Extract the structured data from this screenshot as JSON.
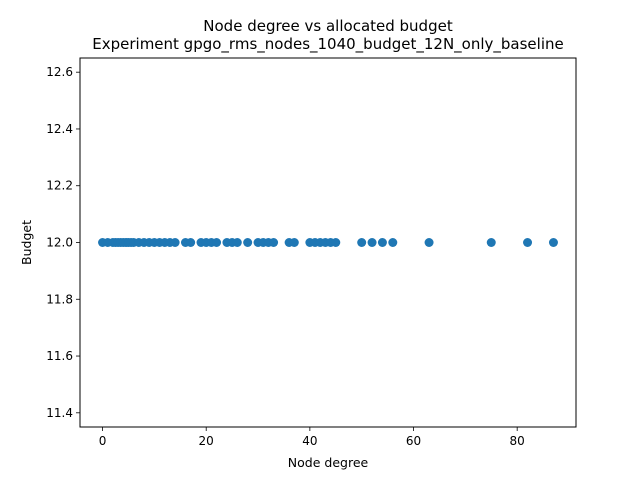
{
  "chart_data": {
    "type": "scatter",
    "title": "Node degree vs allocated budget",
    "subtitle": "Experiment gpgo_rms_nodes_1040_budget_12N_only_baseline",
    "xlabel": "Node degree",
    "ylabel": "Budget",
    "xlim": [
      -4.35,
      91.35
    ],
    "ylim": [
      11.35,
      12.65
    ],
    "xticks": [
      0,
      20,
      40,
      60,
      80
    ],
    "xtick_labels": [
      "0",
      "20",
      "40",
      "60",
      "80"
    ],
    "yticks": [
      11.4,
      11.6,
      11.8,
      12.0,
      12.2,
      12.4,
      12.6
    ],
    "ytick_labels": [
      "11.4",
      "11.6",
      "11.8",
      "12.0",
      "12.2",
      "12.4",
      "12.6"
    ],
    "grid": false,
    "marker_color": "#1f77b4",
    "series": [
      {
        "x": [
          0,
          1,
          2,
          2.5,
          3,
          3.5,
          4,
          4.5,
          5,
          5.5,
          6,
          7,
          8,
          9,
          10,
          11,
          12,
          13,
          14,
          16,
          17,
          19,
          20,
          21,
          22,
          24,
          25,
          26,
          28,
          30,
          31,
          32,
          33,
          36,
          37,
          40,
          41,
          42,
          43,
          44,
          45,
          50,
          52,
          54,
          56,
          63,
          75,
          82,
          87
        ],
        "y": [
          12,
          12,
          12,
          12,
          12,
          12,
          12,
          12,
          12,
          12,
          12,
          12,
          12,
          12,
          12,
          12,
          12,
          12,
          12,
          12,
          12,
          12,
          12,
          12,
          12,
          12,
          12,
          12,
          12,
          12,
          12,
          12,
          12,
          12,
          12,
          12,
          12,
          12,
          12,
          12,
          12,
          12,
          12,
          12,
          12,
          12,
          12,
          12,
          12
        ]
      }
    ]
  }
}
